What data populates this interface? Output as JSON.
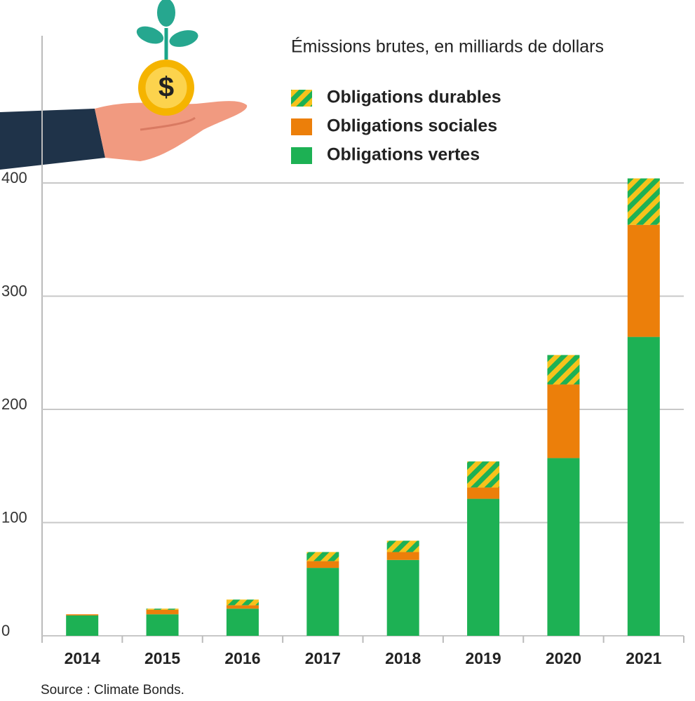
{
  "chart_data": {
    "type": "stacked_bar",
    "title": "Émissions brutes, en milliards de dollars",
    "source": "Source : Climate Bonds.",
    "categories": [
      "2014",
      "2015",
      "2016",
      "2017",
      "2018",
      "2019",
      "2020",
      "2021"
    ],
    "series": [
      {
        "name": "Obligations vertes",
        "color": "#1db154",
        "values": [
          18,
          19,
          24,
          60,
          67,
          121,
          157,
          264
        ]
      },
      {
        "name": "Obligations sociales",
        "color": "#ec7f0a",
        "values": [
          1,
          4,
          3,
          6,
          7,
          10,
          65,
          99
        ]
      },
      {
        "name": "Obligations durables",
        "color": "#f7c21b",
        "pattern": "stripes",
        "pattern_color": "#1db154",
        "values": [
          0,
          1,
          5,
          8,
          10,
          23,
          26,
          41
        ]
      }
    ],
    "ylim": [
      0,
      530
    ],
    "yticks": [
      0,
      100,
      200,
      300,
      400
    ],
    "grid": true
  }
}
